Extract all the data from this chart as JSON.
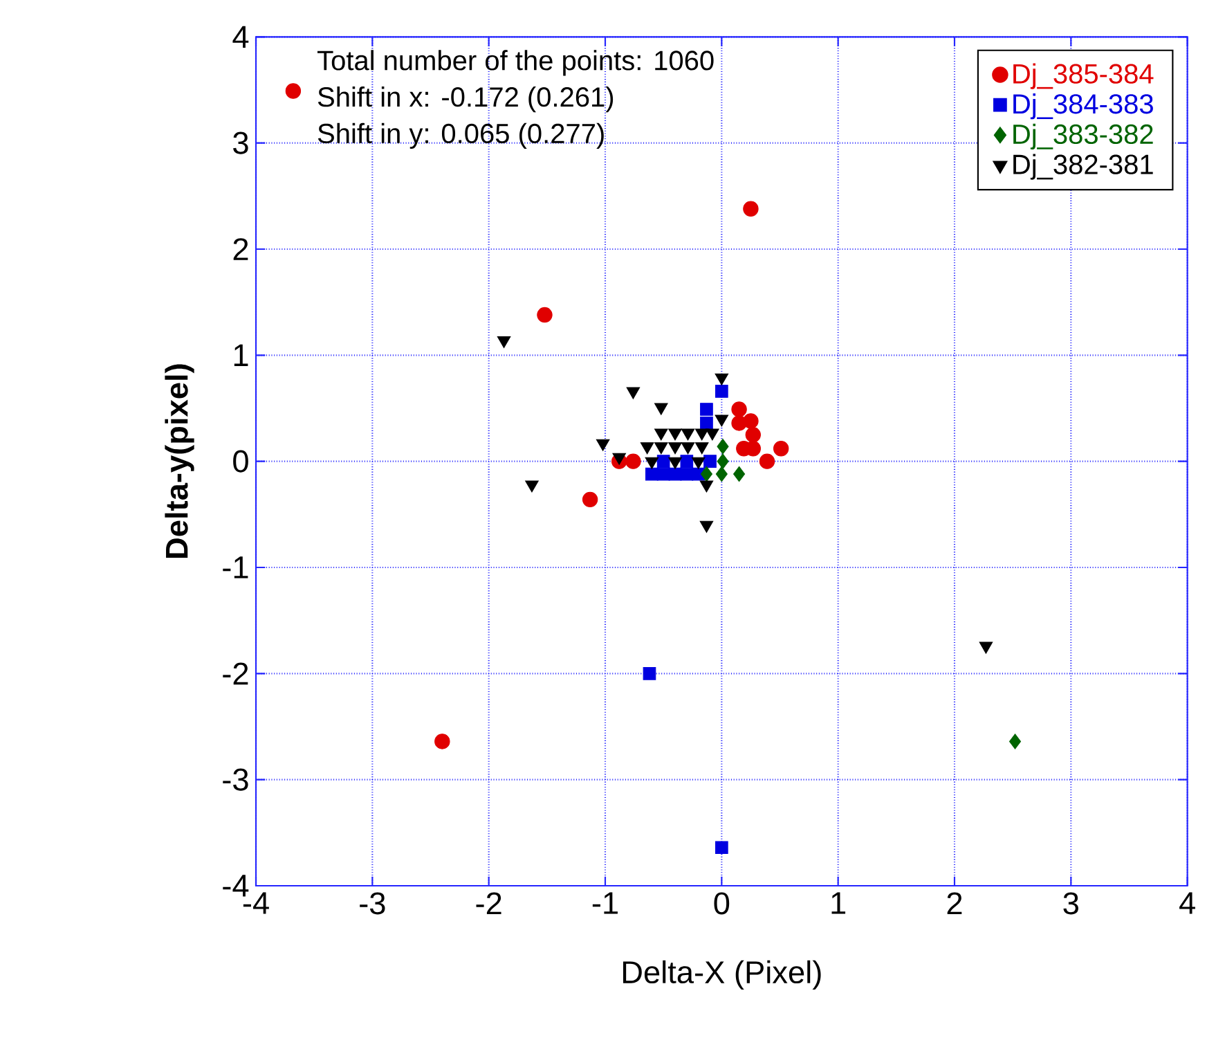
{
  "chart_data": {
    "type": "scatter",
    "xlabel": "Delta-X (Pixel)",
    "ylabel": "Delta-y(pixel)",
    "xlim": [
      -4,
      4
    ],
    "ylim": [
      -4,
      4
    ],
    "xticks": [
      -4,
      -3,
      -2,
      -1,
      0,
      1,
      2,
      3,
      4
    ],
    "yticks": [
      -4,
      -3,
      -2,
      -1,
      0,
      1,
      2,
      3,
      4
    ],
    "grid": true,
    "legend": "top right",
    "annotations": [
      "Total number of the points: 1060",
      "Shift in x: -0.172 (0.261)",
      "Shift in y:  0.065 (0.277)"
    ],
    "series": [
      {
        "name": "Dj_385-384",
        "color": "#e00000",
        "marker": "circle",
        "x": [
          -3.68,
          0.25,
          -1.52,
          -1.13,
          -2.4,
          -0.88,
          -0.76,
          0.15,
          0.25,
          0.27,
          0.27,
          0.39,
          0.51,
          0.15,
          0.19
        ],
        "values": [
          3.49,
          2.38,
          1.38,
          -0.36,
          -2.64,
          0,
          0,
          0.49,
          0.38,
          0.25,
          0.12,
          0,
          0.12,
          0.36,
          0.12
        ]
      },
      {
        "name": "Dj_384-383",
        "color": "#0000e0",
        "marker": "square",
        "x": [
          -0.62,
          0,
          0,
          -0.13,
          -0.13,
          -0.6,
          -0.5,
          -0.4,
          -0.3,
          -0.2,
          -0.5,
          -0.3,
          -0.1
        ],
        "values": [
          -2.0,
          -3.64,
          0.66,
          0.49,
          0.36,
          -0.12,
          -0.12,
          -0.12,
          -0.12,
          -0.12,
          0,
          0,
          0
        ]
      },
      {
        "name": "Dj_383-382",
        "color": "#006400",
        "marker": "diamond",
        "x": [
          2.52,
          0.01,
          0.01,
          0.15,
          -0.13,
          0
        ],
        "values": [
          -2.64,
          0.14,
          0,
          -0.12,
          -0.12,
          -0.12
        ]
      },
      {
        "name": "Dj_382-381",
        "color": "#000000",
        "marker": "triangle",
        "x": [
          -1.87,
          -1.63,
          2.27,
          -0.76,
          -0.52,
          -1.02,
          -0.88,
          0,
          0,
          -0.13,
          -0.13,
          -0.52,
          -0.4,
          -0.29,
          -0.17,
          -0.08,
          -0.64,
          -0.52,
          -0.4,
          -0.29,
          -0.17,
          -0.6,
          -0.4,
          -0.2
        ],
        "values": [
          1.14,
          -0.22,
          -1.74,
          0.66,
          0.51,
          0.17,
          0.04,
          0.79,
          0.4,
          -0.6,
          -0.22,
          0.27,
          0.27,
          0.27,
          0.27,
          0.27,
          0.14,
          0.14,
          0.14,
          0.14,
          0.14,
          0,
          0,
          0
        ]
      }
    ]
  }
}
